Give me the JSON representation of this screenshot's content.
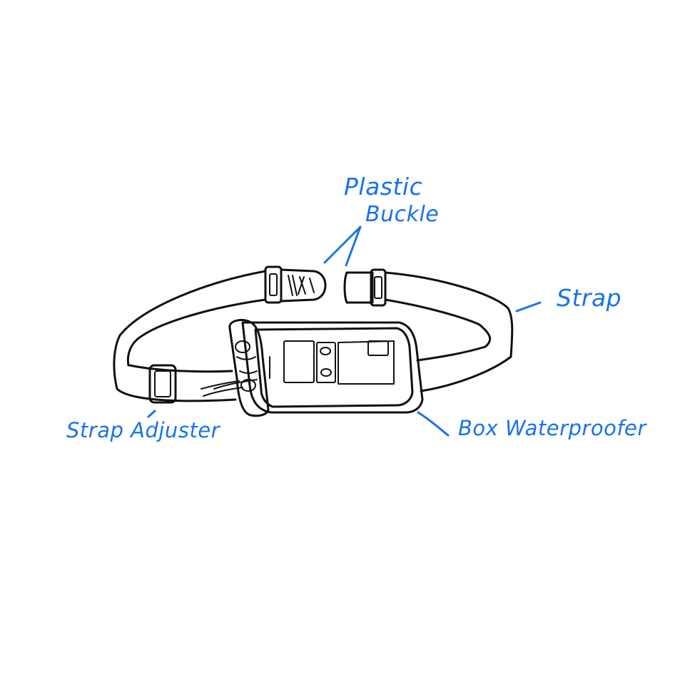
{
  "labels": {
    "plastic_buckle_line1": "Plastic",
    "plastic_buckle_line2": "Buckle",
    "strap": "Strap",
    "strap_adjuster": "Strap Adjuster",
    "box_waterproofer": "Box Waterproofer"
  },
  "colors": {
    "label_blue": "#1a73e8",
    "ink": "#111111",
    "background": "#ffffff"
  }
}
